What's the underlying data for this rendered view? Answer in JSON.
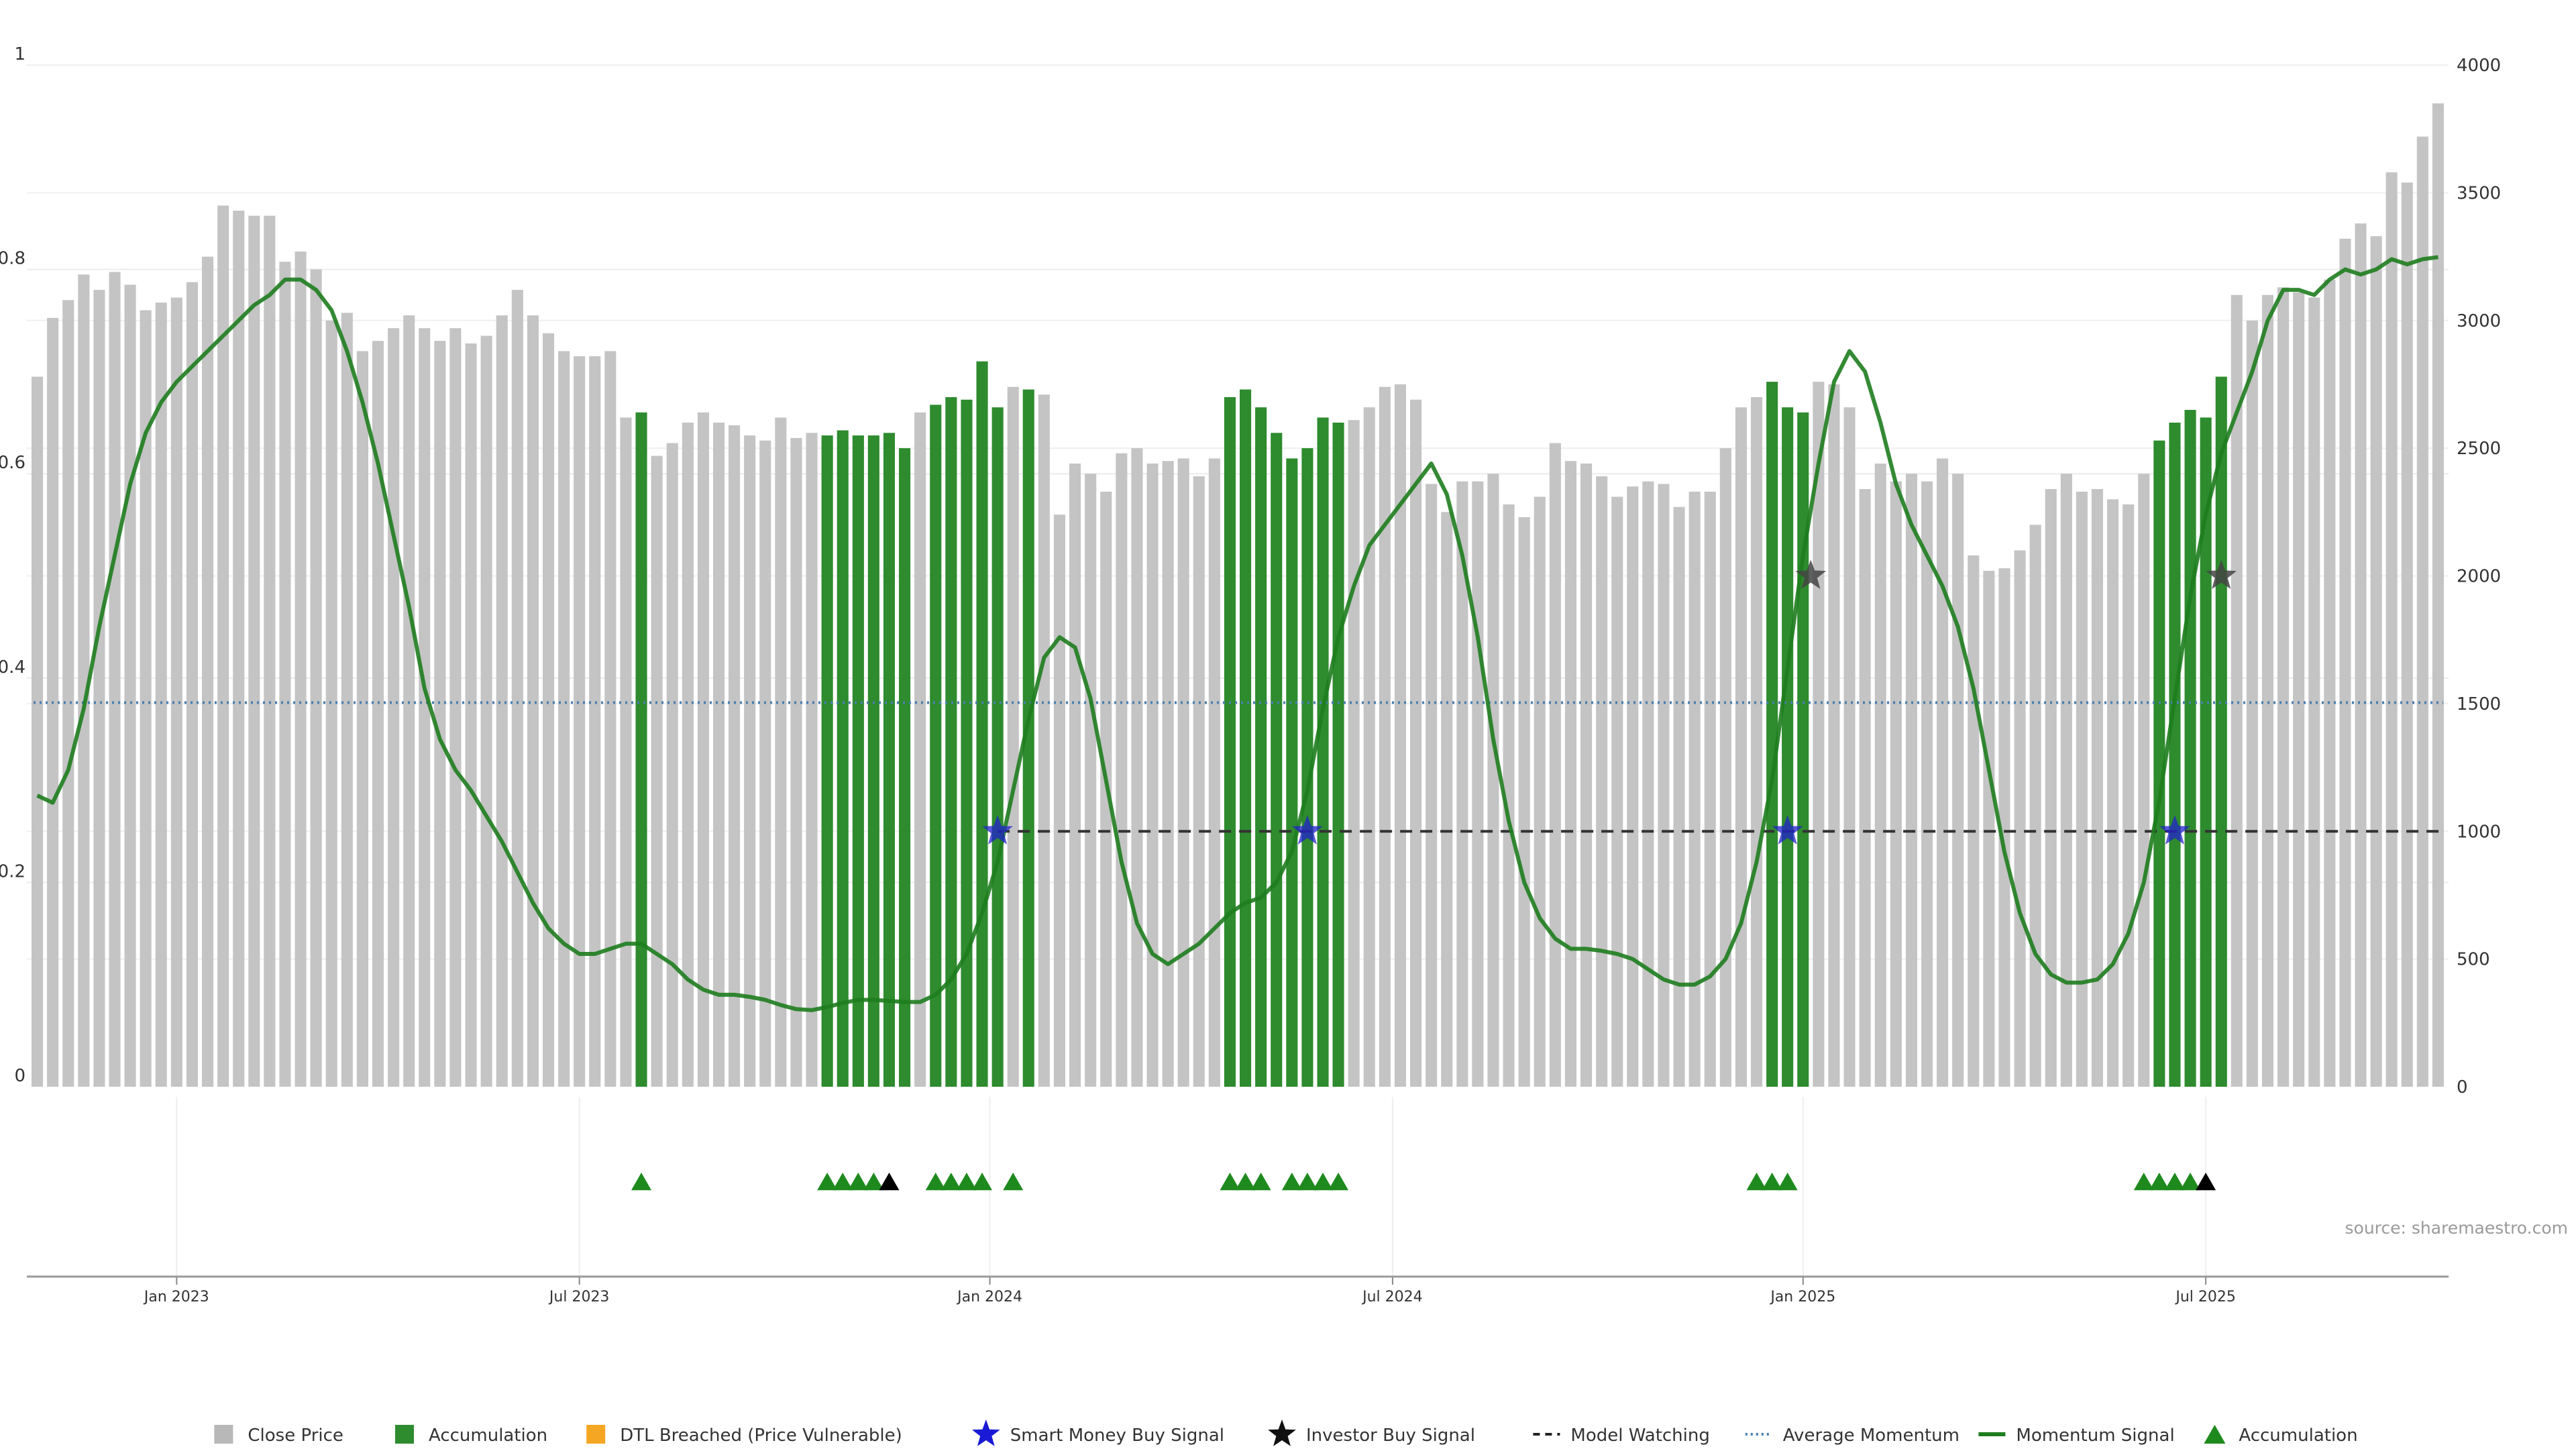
{
  "chart_data": {
    "type": "bar",
    "source": "source: sharemaestro.com",
    "left_axis": {
      "ylim": [
        0,
        1
      ],
      "ticks": [
        "0",
        "0.2",
        "0.4",
        "0.6",
        "0.8",
        "1"
      ]
    },
    "right_axis": {
      "ylim": [
        0,
        4000
      ],
      "ticks": [
        "0",
        "500",
        "1000",
        "1500",
        "2000",
        "2500",
        "3000",
        "3500",
        "4000"
      ]
    },
    "x_ticks": [
      {
        "label": "Jan 2023",
        "week": 9
      },
      {
        "label": "Jul 2023",
        "week": 35
      },
      {
        "label": "Jan 2024",
        "week": 61.5
      },
      {
        "label": "Jul 2024",
        "week": 87.5
      },
      {
        "label": "Jan 2025",
        "week": 114
      },
      {
        "label": "Jul 2025",
        "week": 140
      }
    ],
    "colors": {
      "close": "#c4c4c4",
      "accumulation": "#2e8b2e",
      "dtl": "#f5a623",
      "smart_money": "#2222cc",
      "investor": "#444444",
      "model_watching": "#333333",
      "avg_momentum": "#4a7fb0",
      "momentum": "#1e7d1e",
      "marker": "#1e8a1e"
    },
    "close_price": [
      2780,
      3010,
      3080,
      3180,
      3120,
      3190,
      3140,
      3040,
      3070,
      3090,
      3150,
      3250,
      3450,
      3430,
      3410,
      3410,
      3230,
      3270,
      3200,
      3000,
      3030,
      2880,
      2920,
      2970,
      3020,
      2970,
      2920,
      2970,
      2910,
      2940,
      3020,
      3120,
      3020,
      2950,
      2880,
      2860,
      2860,
      2880,
      2620,
      2640,
      2470,
      2520,
      2600,
      2640,
      2600,
      2590,
      2550,
      2530,
      2620,
      2540,
      2560,
      2550,
      2570,
      2550,
      2550,
      2560,
      2500,
      2640,
      2670,
      2700,
      2690,
      2840,
      2660,
      2740,
      2730,
      2710,
      2240,
      2440,
      2400,
      2330,
      2480,
      2500,
      2440,
      2450,
      2460,
      2390,
      2460,
      2700,
      2730,
      2660,
      2560,
      2460,
      2500,
      2620,
      2600,
      2610,
      2660,
      2740,
      2750,
      2690,
      2360,
      2250,
      2370,
      2370,
      2400,
      2280,
      2230,
      2310,
      2520,
      2450,
      2440,
      2390,
      2310,
      2350,
      2370,
      2360,
      2270,
      2330,
      2330,
      2500,
      2660,
      2700,
      2760,
      2660,
      2640,
      2760,
      2750,
      2660,
      2340,
      2440,
      2370,
      2400,
      2370,
      2460,
      2400,
      2080,
      2020,
      2030,
      2100,
      2200,
      2340,
      2400,
      2330,
      2340,
      2300,
      2280,
      2400,
      2530,
      2600,
      2650,
      2620,
      2780,
      3100,
      3000,
      3100,
      3130,
      3110,
      3090,
      3160,
      3320,
      3380,
      3330,
      3580,
      3540,
      3720,
      3850
    ],
    "accumulation_weeks": [
      39,
      51,
      52,
      53,
      54,
      55,
      56,
      58,
      59,
      60,
      61,
      62,
      64,
      77,
      78,
      79,
      80,
      81,
      82,
      83,
      84,
      112,
      113,
      114,
      137,
      138,
      139,
      140,
      141
    ],
    "momentum_signal": [
      0.285,
      0.278,
      0.31,
      0.37,
      0.45,
      0.52,
      0.59,
      0.64,
      0.67,
      0.69,
      0.705,
      0.72,
      0.735,
      0.75,
      0.765,
      0.775,
      0.79,
      0.79,
      0.78,
      0.76,
      0.72,
      0.67,
      0.61,
      0.54,
      0.47,
      0.39,
      0.34,
      0.31,
      0.29,
      0.265,
      0.24,
      0.21,
      0.18,
      0.155,
      0.14,
      0.13,
      0.13,
      0.135,
      0.14,
      0.14,
      0.13,
      0.12,
      0.105,
      0.095,
      0.09,
      0.09,
      0.088,
      0.085,
      0.08,
      0.076,
      0.075,
      0.078,
      0.082,
      0.085,
      0.085,
      0.084,
      0.083,
      0.083,
      0.09,
      0.105,
      0.13,
      0.17,
      0.22,
      0.29,
      0.36,
      0.42,
      0.44,
      0.43,
      0.38,
      0.3,
      0.22,
      0.16,
      0.13,
      0.12,
      0.13,
      0.14,
      0.155,
      0.17,
      0.18,
      0.185,
      0.2,
      0.23,
      0.29,
      0.37,
      0.44,
      0.49,
      0.53,
      0.55,
      0.57,
      0.59,
      0.61,
      0.58,
      0.52,
      0.44,
      0.34,
      0.26,
      0.2,
      0.165,
      0.145,
      0.135,
      0.135,
      0.133,
      0.13,
      0.125,
      0.115,
      0.105,
      0.1,
      0.1,
      0.108,
      0.125,
      0.16,
      0.22,
      0.3,
      0.41,
      0.52,
      0.61,
      0.69,
      0.72,
      0.7,
      0.65,
      0.59,
      0.55,
      0.52,
      0.49,
      0.45,
      0.39,
      0.31,
      0.23,
      0.17,
      0.13,
      0.11,
      0.102,
      0.102,
      0.105,
      0.12,
      0.15,
      0.2,
      0.28,
      0.38,
      0.48,
      0.56,
      0.62,
      0.66,
      0.7,
      0.75,
      0.78,
      0.78,
      0.775,
      0.79,
      0.8,
      0.795,
      0.8,
      0.81,
      0.805,
      0.81,
      0.812
    ],
    "average_momentum": 0.376,
    "model_watching": 0.25,
    "smart_money_signals": [
      {
        "week": 62,
        "value": 0.25
      },
      {
        "week": 82,
        "value": 0.25
      },
      {
        "week": 113,
        "value": 0.25
      },
      {
        "week": 138,
        "value": 0.25
      }
    ],
    "investor_signals": [
      {
        "week": 114.5,
        "value": 0.5
      },
      {
        "week": 141,
        "value": 0.5
      }
    ],
    "accumulation_markers": [
      39,
      51,
      52,
      53,
      54,
      58,
      59,
      60,
      61,
      63,
      77,
      78,
      79,
      81,
      82,
      83,
      84,
      111,
      112,
      113,
      136,
      137,
      138,
      139
    ],
    "investor_markers": [
      55,
      140
    ],
    "legend": [
      {
        "label": "Close Price",
        "kind": "square",
        "color": "#b8b8b8"
      },
      {
        "label": "Accumulation",
        "kind": "square",
        "color": "#2e8b2e"
      },
      {
        "label": "DTL Breached (Price Vulnerable)",
        "kind": "square",
        "color": "#f5a623"
      },
      {
        "label": "Smart Money Buy Signal",
        "kind": "star",
        "color": "#1a1ad6"
      },
      {
        "label": "Investor Buy Signal",
        "kind": "star",
        "color": "#111111"
      },
      {
        "label": "Model Watching",
        "kind": "dash",
        "color": "#222222"
      },
      {
        "label": "Average Momentum",
        "kind": "dot",
        "color": "#4a7fb0"
      },
      {
        "label": "Momentum Signal",
        "kind": "line",
        "color": "#1e7d1e"
      },
      {
        "label": "Accumulation",
        "kind": "triangle",
        "color": "#1e8a1e"
      }
    ]
  }
}
